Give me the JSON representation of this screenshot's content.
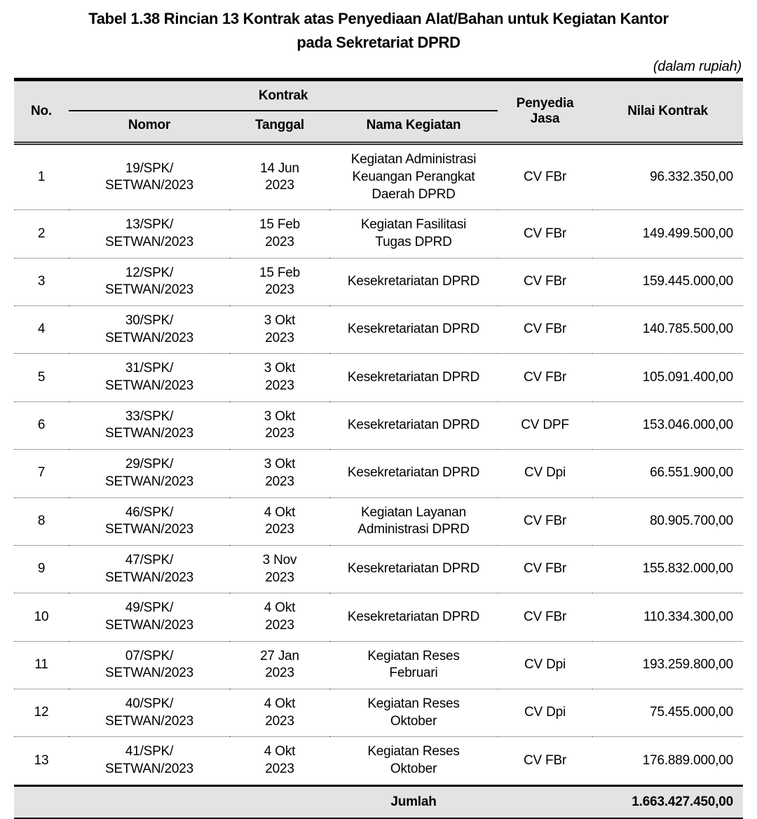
{
  "title": {
    "line1": "Tabel 1.38 Rincian 13 Kontrak atas Penyediaan Alat/Bahan untuk Kegiatan Kantor",
    "line2": "pada Sekretariat DPRD",
    "unit_note": "(dalam rupiah)"
  },
  "colors": {
    "header_background": "#e3e3e3",
    "border": "#000000",
    "text": "#000000"
  },
  "table": {
    "headers": {
      "no": "No.",
      "kontrak_group": "Kontrak",
      "nomor": "Nomor",
      "tanggal": "Tanggal",
      "nama_kegiatan": "Nama Kegiatan",
      "penyedia_jasa": "Penyedia\nJasa",
      "nilai_kontrak": "Nilai Kontrak"
    },
    "rows": [
      {
        "no": "1",
        "nomor": "19/SPK/\nSETWAN/2023",
        "tanggal": "14 Jun\n2023",
        "nama": "Kegiatan Administrasi\nKeuangan Perangkat\nDaerah DPRD",
        "penyedia": "CV FBr",
        "nilai": "96.332.350,00"
      },
      {
        "no": "2",
        "nomor": "13/SPK/\nSETWAN/2023",
        "tanggal": "15 Feb\n2023",
        "nama": "Kegiatan Fasilitasi\nTugas DPRD",
        "penyedia": "CV FBr",
        "nilai": "149.499.500,00"
      },
      {
        "no": "3",
        "nomor": "12/SPK/\nSETWAN/2023",
        "tanggal": "15 Feb\n2023",
        "nama": "Kesekretariatan DPRD",
        "penyedia": "CV FBr",
        "nilai": "159.445.000,00"
      },
      {
        "no": "4",
        "nomor": "30/SPK/\nSETWAN/2023",
        "tanggal": "3 Okt\n2023",
        "nama": "Kesekretariatan DPRD",
        "penyedia": "CV FBr",
        "nilai": "140.785.500,00"
      },
      {
        "no": "5",
        "nomor": "31/SPK/\nSETWAN/2023",
        "tanggal": "3 Okt\n2023",
        "nama": "Kesekretariatan DPRD",
        "penyedia": "CV FBr",
        "nilai": "105.091.400,00"
      },
      {
        "no": "6",
        "nomor": "33/SPK/\nSETWAN/2023",
        "tanggal": "3 Okt\n2023",
        "nama": "Kesekretariatan DPRD",
        "penyedia": "CV DPF",
        "nilai": "153.046.000,00"
      },
      {
        "no": "7",
        "nomor": "29/SPK/\nSETWAN/2023",
        "tanggal": "3 Okt\n2023",
        "nama": "Kesekretariatan DPRD",
        "penyedia": "CV Dpi",
        "nilai": "66.551.900,00"
      },
      {
        "no": "8",
        "nomor": "46/SPK/\nSETWAN/2023",
        "tanggal": "4 Okt\n2023",
        "nama": "Kegiatan Layanan\nAdministrasi DPRD",
        "penyedia": "CV FBr",
        "nilai": "80.905.700,00"
      },
      {
        "no": "9",
        "nomor": "47/SPK/\nSETWAN/2023",
        "tanggal": "3 Nov\n2023",
        "nama": "Kesekretariatan DPRD",
        "penyedia": "CV FBr",
        "nilai": "155.832.000,00"
      },
      {
        "no": "10",
        "nomor": "49/SPK/\nSETWAN/2023",
        "tanggal": "4 Okt\n2023",
        "nama": "Kesekretariatan DPRD",
        "penyedia": "CV FBr",
        "nilai": "110.334.300,00"
      },
      {
        "no": "11",
        "nomor": "07/SPK/\nSETWAN/2023",
        "tanggal": "27 Jan\n2023",
        "nama": "Kegiatan Reses\nFebruari",
        "penyedia": "CV Dpi",
        "nilai": "193.259.800,00"
      },
      {
        "no": "12",
        "nomor": "40/SPK/\nSETWAN/2023",
        "tanggal": "4 Okt\n2023",
        "nama": "Kegiatan Reses\nOktober",
        "penyedia": "CV Dpi",
        "nilai": "75.455.000,00"
      },
      {
        "no": "13",
        "nomor": "41/SPK/\nSETWAN/2023",
        "tanggal": "4 Okt\n2023",
        "nama": "Kegiatan Reses\nOktober",
        "penyedia": "CV FBr",
        "nilai": "176.889.000,00"
      }
    ],
    "footer": {
      "label": "Jumlah",
      "total": "1.663.427.450,00"
    }
  }
}
